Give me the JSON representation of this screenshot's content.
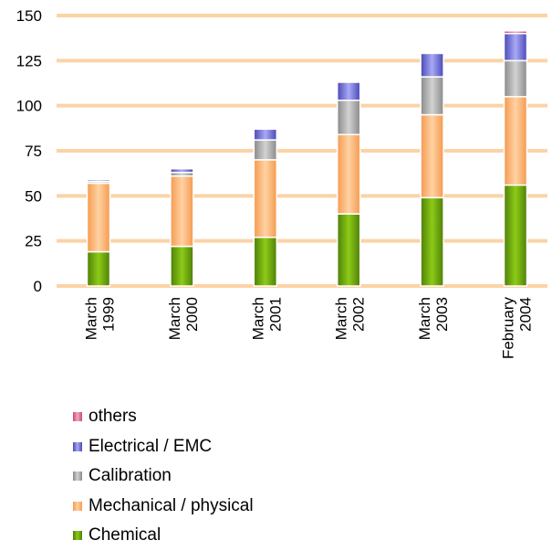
{
  "chart_data": {
    "type": "bar",
    "stacked": true,
    "categories": [
      [
        "March",
        "1999"
      ],
      [
        "March",
        "2000"
      ],
      [
        "March",
        "2001"
      ],
      [
        "March",
        "2002"
      ],
      [
        "March",
        "2003"
      ],
      [
        "February",
        "2004"
      ]
    ],
    "series": [
      {
        "name": "Chemical",
        "color": "#6aa30f",
        "values": [
          19,
          22,
          27,
          40,
          49,
          56
        ]
      },
      {
        "name": "Mechanical / physical",
        "color": "#fdb26d",
        "values": [
          38,
          39,
          43,
          44,
          46,
          49
        ]
      },
      {
        "name": "Calibration",
        "color": "#a7a7a7",
        "values": [
          1,
          2,
          11,
          19,
          21,
          20
        ]
      },
      {
        "name": "Electrical / EMC",
        "color": "#7070dd",
        "values": [
          1,
          2,
          6,
          10,
          13,
          15
        ]
      },
      {
        "name": "others",
        "color": "#e07090",
        "values": [
          0,
          0,
          0,
          0,
          0,
          1.5
        ]
      }
    ],
    "legend_order": [
      "others",
      "Electrical / EMC",
      "Calibration",
      "Mechanical / physical",
      "Chemical"
    ],
    "y_ticks": [
      0,
      25,
      50,
      75,
      100,
      125,
      150
    ],
    "ylim": [
      0,
      150
    ],
    "grid_color": "#fbd3a6",
    "grid": true,
    "legend_position": "bottom"
  }
}
